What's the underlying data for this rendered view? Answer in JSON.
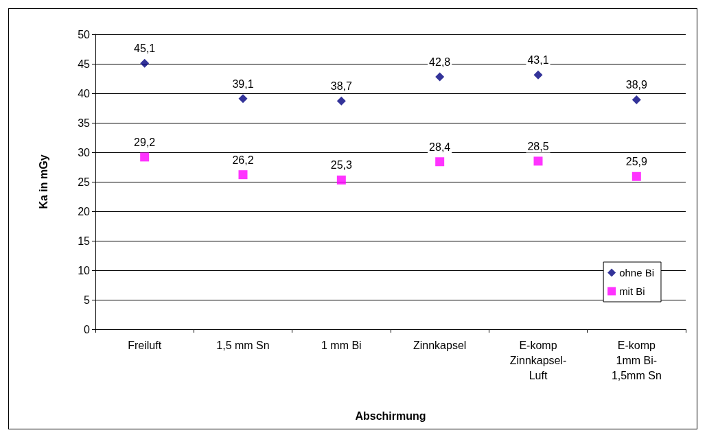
{
  "chart_data": {
    "type": "scatter",
    "xlabel": "Abschirmung",
    "ylabel": "Ka in mGy",
    "categories": [
      "Freiluft",
      "1,5 mm Sn",
      "1 mm Bi",
      "Zinnkapsel",
      "E-komp\nZinnkapsel-\nLuft",
      "E-komp\n1mm Bi-\n1,5mm Sn"
    ],
    "series": [
      {
        "name": "ohne Bi",
        "color": "#000080",
        "marker": "diamond",
        "values": [
          45.1,
          39.1,
          38.7,
          42.8,
          43.1,
          38.9
        ],
        "value_labels": [
          "45,1",
          "39,1",
          "38,7",
          "42,8",
          "43,1",
          "38,9"
        ]
      },
      {
        "name": "mit Bi",
        "color": "#ff00ff",
        "marker": "square",
        "values": [
          29.2,
          26.2,
          25.3,
          28.4,
          28.5,
          25.9
        ],
        "value_labels": [
          "29,2",
          "26,2",
          "25,3",
          "28,4",
          "28,5",
          "25,9"
        ]
      }
    ],
    "ylim": [
      0,
      50
    ],
    "yticks": [
      0,
      5,
      10,
      15,
      20,
      25,
      30,
      35,
      40,
      45,
      50
    ],
    "grid": "y",
    "legend": "bottom right"
  }
}
